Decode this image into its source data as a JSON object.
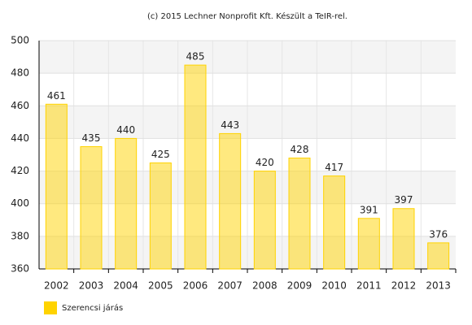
{
  "chart_data": {
    "type": "bar",
    "title": "(c) 2015 Lechner Nonprofit Kft. Készült a TeIR-rel.",
    "categories": [
      "2002",
      "2003",
      "2004",
      "2005",
      "2006",
      "2007",
      "2008",
      "2009",
      "2010",
      "2011",
      "2012",
      "2013"
    ],
    "series": [
      {
        "name": "Szerencsi járás",
        "color": "#ffd300",
        "values": [
          461,
          435,
          440,
          425,
          485,
          443,
          420,
          428,
          417,
          391,
          397,
          376
        ]
      }
    ],
    "ylim": [
      360,
      500
    ],
    "yticks": [
      360,
      380,
      400,
      420,
      440,
      460,
      480,
      500
    ],
    "grid": true,
    "legend": "bottom-left"
  }
}
